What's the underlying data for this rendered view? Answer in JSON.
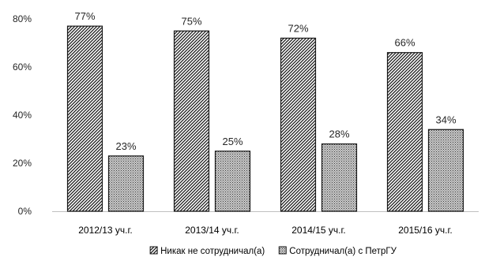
{
  "chart_data": {
    "type": "bar",
    "title": "",
    "xlabel": "",
    "ylabel": "",
    "ylim": [
      0,
      80
    ],
    "yticks": [
      0,
      20,
      40,
      60,
      80
    ],
    "ytick_labels": [
      "0%",
      "20%",
      "40%",
      "60%",
      "80%"
    ],
    "value_suffix": "%",
    "grid": false,
    "legend_position": "bottom",
    "categories": [
      "2012/13 уч.г.",
      "2013/14 уч.г.",
      "2014/15 уч.г.",
      "2015/16 уч.г."
    ],
    "series": [
      {
        "name": "Никак не сотрудничал(а)",
        "values": [
          77,
          75,
          72,
          66
        ],
        "pattern": "diagonal-hatch",
        "color": "#3a3a3a"
      },
      {
        "name": "Сотрудничал(а) с ПетрГУ",
        "values": [
          23,
          25,
          28,
          34
        ],
        "pattern": "dots",
        "color": "#6e6e6e"
      }
    ]
  }
}
